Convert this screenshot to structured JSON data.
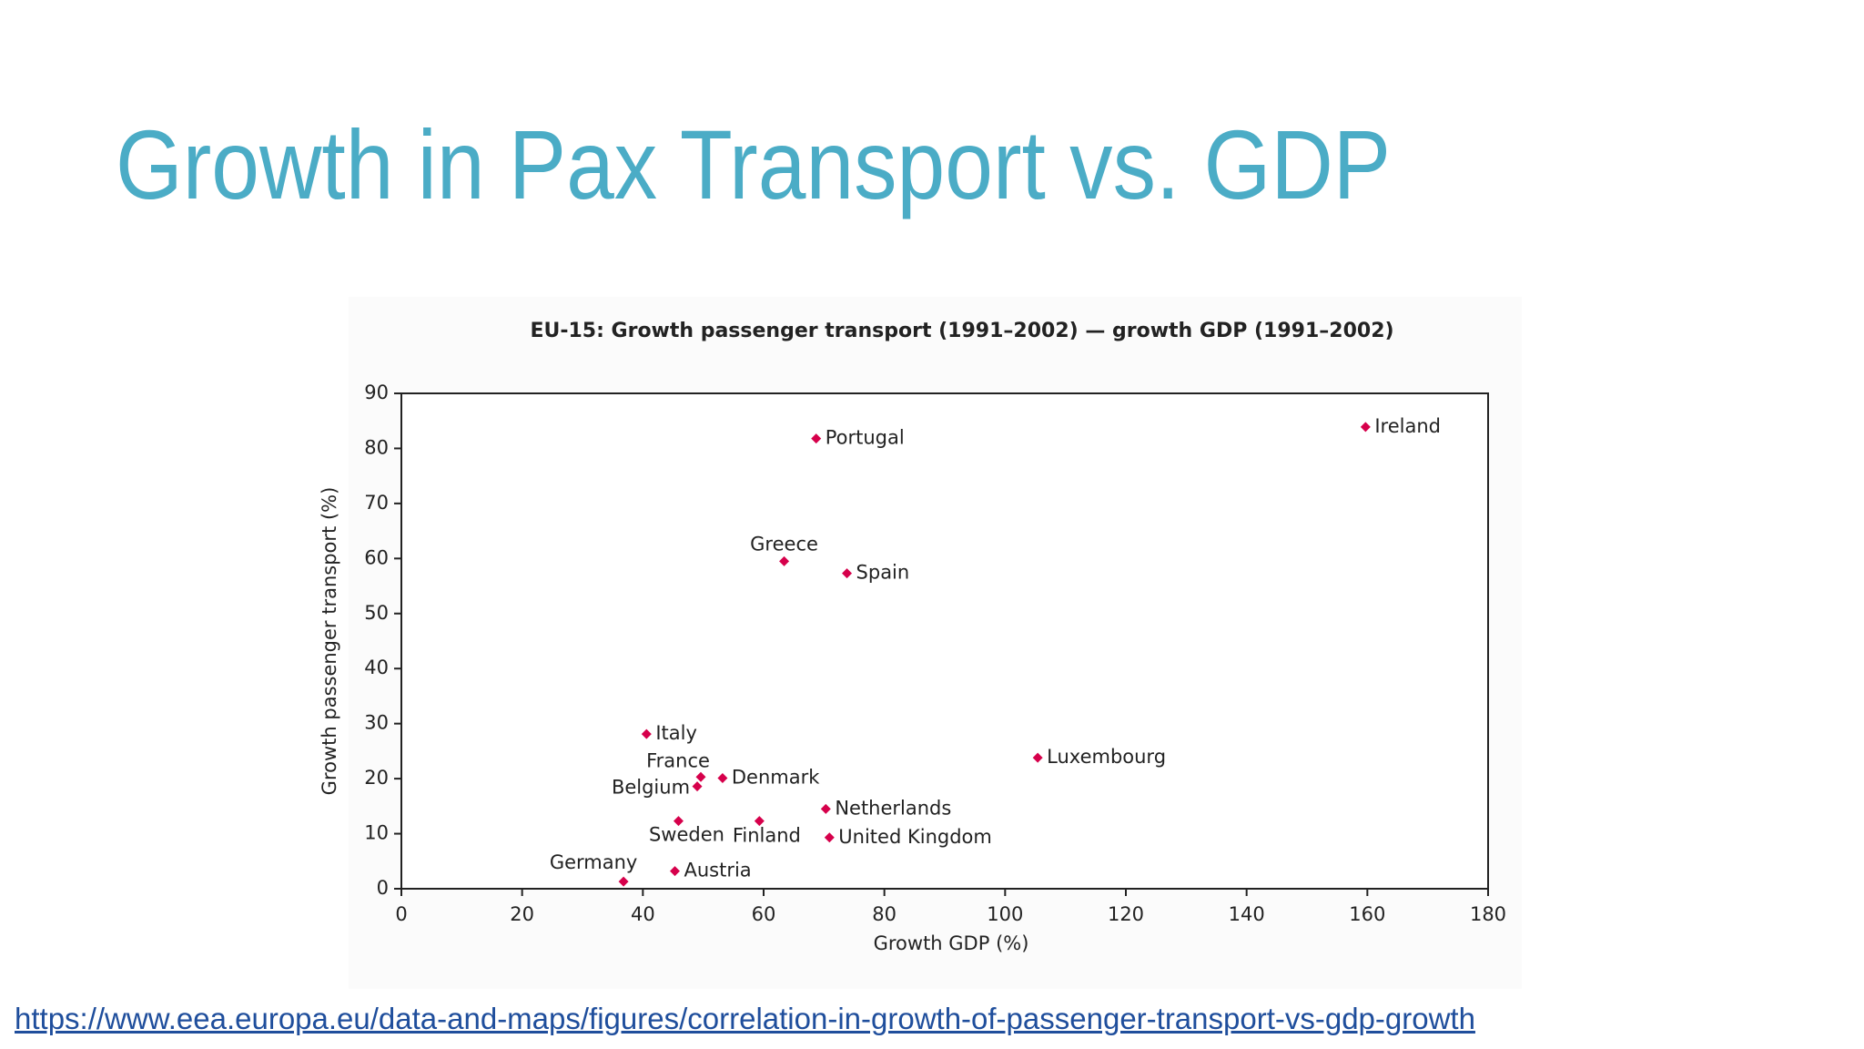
{
  "slide_title": "Growth in Pax Transport vs. GDP",
  "link": "https://www.eea.europa.eu/data-and-maps/figures/correlation-in-growth-of-passenger-transport-vs-gdp-growth",
  "chart_data": {
    "type": "scatter",
    "title": "EU-15: Growth passenger transport (1991–2002) — growth GDP (1991–2002)",
    "x_label": "Growth GDP (%)",
    "y_label": "Growth passenger transport (%)",
    "labels": [
      "Portugal",
      "Ireland",
      "Greece",
      "Spain",
      "Italy",
      "France",
      "Belgium",
      "Denmark",
      "Luxembourg",
      "Netherlands",
      "United Kingdom",
      "Sweden",
      "Finland",
      "Austria",
      "Germany"
    ],
    "x": [
      68.7,
      159.7,
      63.4,
      73.8,
      40.6,
      49.6,
      49.0,
      53.2,
      105.4,
      70.3,
      70.9,
      45.9,
      59.3,
      45.3,
      36.8
    ],
    "values": [
      81.8,
      83.9,
      59.5,
      57.3,
      28.1,
      20.3,
      18.6,
      20.1,
      23.8,
      14.5,
      9.3,
      12.3,
      12.3,
      3.2,
      1.3
    ],
    "color": "#d6004b",
    "xlim": [
      0,
      180
    ],
    "xticks": [
      0,
      20,
      40,
      60,
      80,
      100,
      120,
      140,
      160,
      180
    ],
    "ylim": [
      0,
      90
    ],
    "yticks": [
      0,
      10,
      20,
      30,
      40,
      50,
      60,
      70,
      80,
      90
    ],
    "grid": false
  }
}
